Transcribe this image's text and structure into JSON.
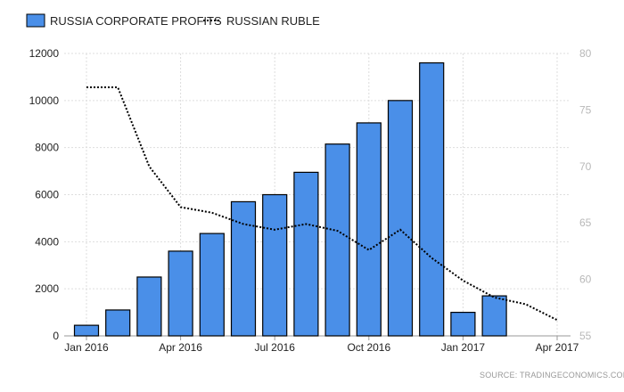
{
  "legend": {
    "bars_label": "RUSSIA CORPORATE PROFITS",
    "line_label": "RUSSIAN RUBLE"
  },
  "source": "SOURCE: TRADINGECONOMICS.COM",
  "colors": {
    "bar_fill": "#4a8fe8",
    "bar_stroke": "#000000",
    "line": "#000000",
    "grid": "#dddddd"
  },
  "chart_data": {
    "type": "bar",
    "title": "",
    "grid": true,
    "legend_position": "top-left",
    "x_ticks": [
      "Jan 2016",
      "Apr 2016",
      "Jul 2016",
      "Oct 2016",
      "Jan 2017",
      "Apr 2017"
    ],
    "y_left": {
      "min": 0,
      "max": 12000,
      "ticks": [
        0,
        2000,
        4000,
        6000,
        8000,
        10000,
        12000
      ]
    },
    "y_right": {
      "min": 55,
      "max": 80,
      "ticks": [
        55,
        60,
        65,
        70,
        75,
        80
      ]
    },
    "series": [
      {
        "name": "RUSSIA CORPORATE PROFITS",
        "type": "bar",
        "axis": "left",
        "categories": [
          "Jan 2016",
          "Feb 2016",
          "Mar 2016",
          "Apr 2016",
          "May 2016",
          "Jun 2016",
          "Jul 2016",
          "Aug 2016",
          "Sep 2016",
          "Oct 2016",
          "Nov 2016",
          "Dec 2016",
          "Jan 2017",
          "Feb 2017"
        ],
        "values": [
          450,
          1100,
          2500,
          3600,
          4350,
          5700,
          6000,
          6950,
          8150,
          9050,
          10000,
          11600,
          1000,
          1700
        ]
      },
      {
        "name": "RUSSIAN RUBLE",
        "type": "line",
        "style": "dotted",
        "axis": "right",
        "x": [
          "Jan 2016",
          "Feb 2016",
          "Mar 2016",
          "Apr 2016",
          "May 2016",
          "Jun 2016",
          "Jul 2016",
          "Aug 2016",
          "Sep 2016",
          "Oct 2016",
          "Nov 2016",
          "Dec 2016",
          "Jan 2017",
          "Feb 2017",
          "Mar 2017",
          "Apr 2017"
        ],
        "values": [
          77.0,
          77.0,
          70.0,
          66.4,
          65.9,
          64.9,
          64.4,
          64.9,
          64.3,
          62.6,
          64.4,
          61.9,
          59.9,
          58.4,
          57.8,
          56.4
        ]
      }
    ]
  }
}
